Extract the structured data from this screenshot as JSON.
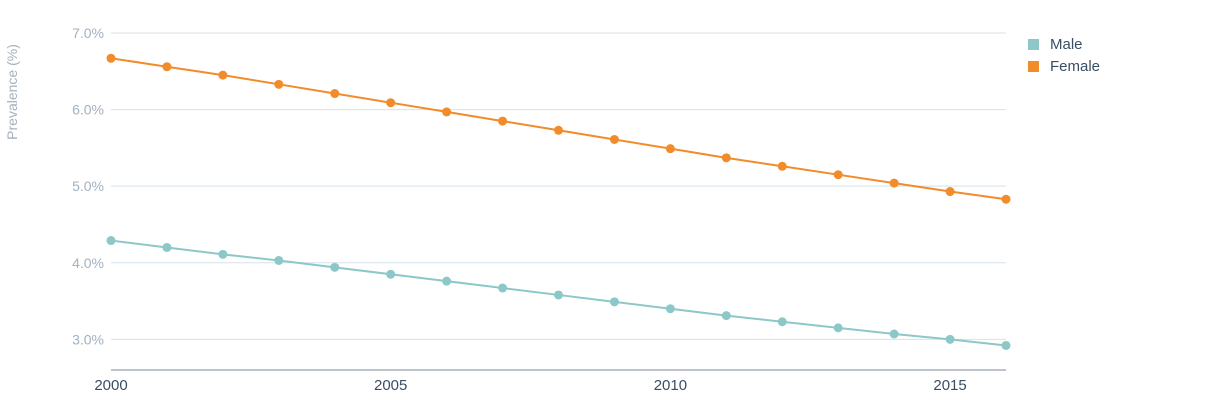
{
  "chart_data": {
    "type": "line",
    "title": "",
    "xlabel": "",
    "ylabel": "Prevalence (%)",
    "x": [
      2000,
      2001,
      2002,
      2003,
      2004,
      2005,
      2006,
      2007,
      2008,
      2009,
      2010,
      2011,
      2012,
      2013,
      2014,
      2015,
      2016
    ],
    "x_ticks": [
      "2000",
      "2005",
      "2010",
      "2015"
    ],
    "x_tick_values": [
      2000,
      2005,
      2010,
      2015
    ],
    "y_ticks": [
      "3.0%",
      "4.0%",
      "5.0%",
      "6.0%",
      "7.0%"
    ],
    "y_tick_values": [
      3.0,
      4.0,
      5.0,
      6.0,
      7.0
    ],
    "ylim": [
      2.6,
      7.0
    ],
    "xlim": [
      2000,
      2016
    ],
    "grid": true,
    "legend_position": "top-right",
    "series": [
      {
        "name": "Male",
        "color": "#8cc8c8",
        "values": [
          4.29,
          4.2,
          4.11,
          4.03,
          3.94,
          3.85,
          3.76,
          3.67,
          3.58,
          3.49,
          3.4,
          3.31,
          3.23,
          3.15,
          3.07,
          3.0,
          2.92
        ]
      },
      {
        "name": "Female",
        "color": "#f28b2a",
        "values": [
          6.67,
          6.56,
          6.45,
          6.33,
          6.21,
          6.09,
          5.97,
          5.85,
          5.73,
          5.61,
          5.49,
          5.37,
          5.26,
          5.15,
          5.04,
          4.93,
          4.83
        ]
      }
    ]
  }
}
